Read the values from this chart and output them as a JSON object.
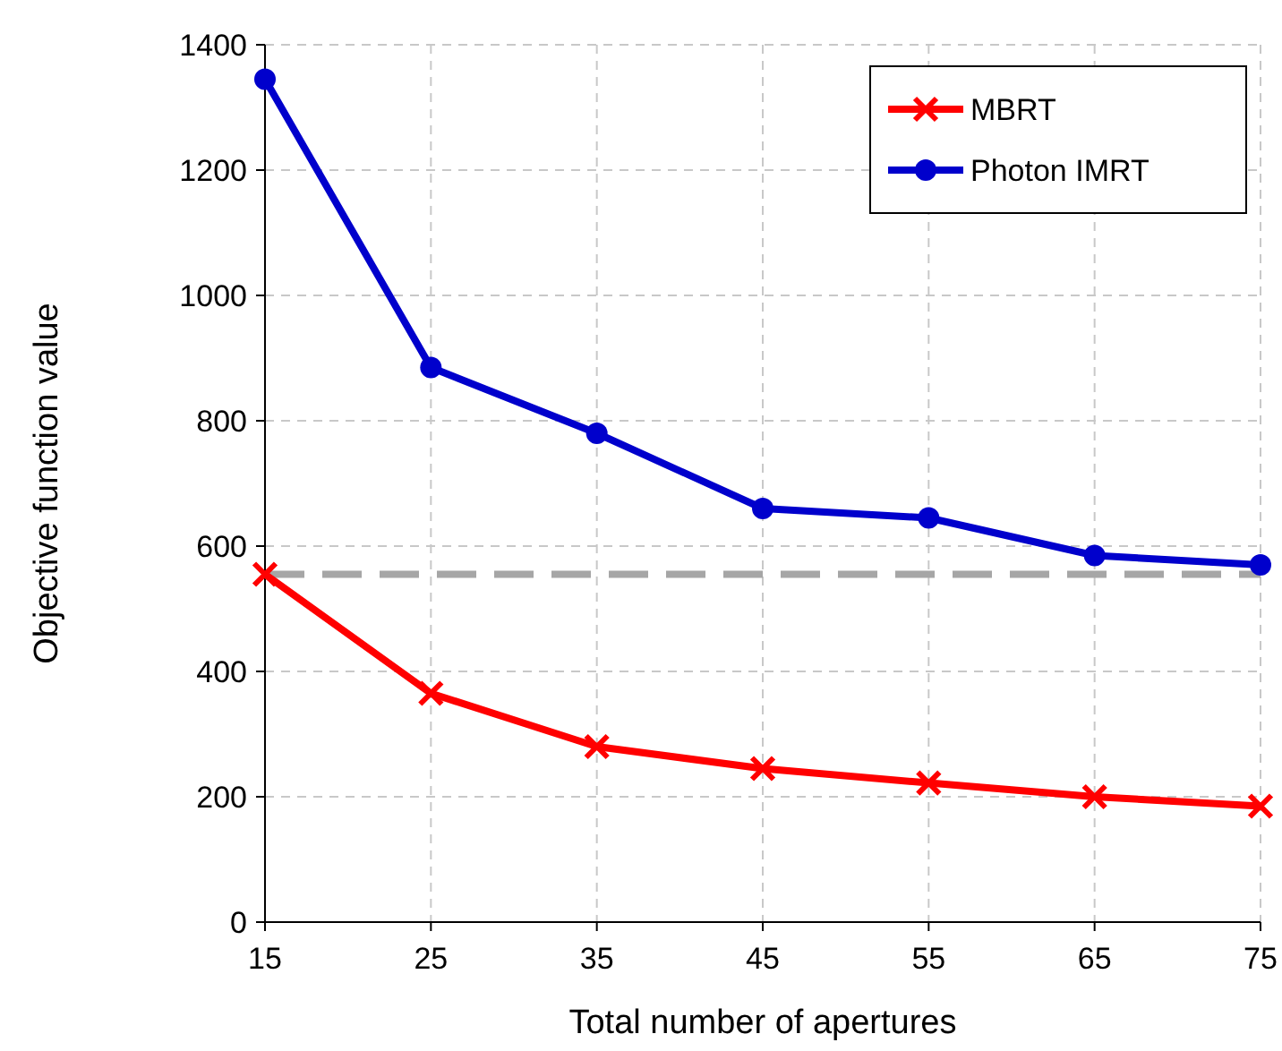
{
  "chart_data": {
    "type": "line",
    "xlabel": "Total number of apertures",
    "ylabel": "Objective function value",
    "x": [
      15,
      25,
      35,
      45,
      55,
      65,
      75
    ],
    "xlim": [
      15,
      75
    ],
    "xticks": [
      15,
      25,
      35,
      45,
      55,
      65,
      75
    ],
    "ylim": [
      0,
      1400
    ],
    "yticks": [
      0,
      200,
      400,
      600,
      800,
      1000,
      1200,
      1400
    ],
    "grid": true,
    "legend": "top right",
    "line_style": "solid",
    "series": [
      {
        "name": "MBRT",
        "color": "#ff0000",
        "marker": "cross",
        "values": [
          555,
          365,
          280,
          245,
          222,
          200,
          185
        ]
      },
      {
        "name": "Photon IMRT",
        "color": "#0000cc",
        "marker": "circle",
        "values": [
          1345,
          885,
          780,
          660,
          645,
          585,
          570
        ]
      }
    ],
    "ref_lines": [
      {
        "axis": "y",
        "value": 555,
        "color": "#a6a6a6",
        "line_style": "dashed"
      }
    ]
  }
}
